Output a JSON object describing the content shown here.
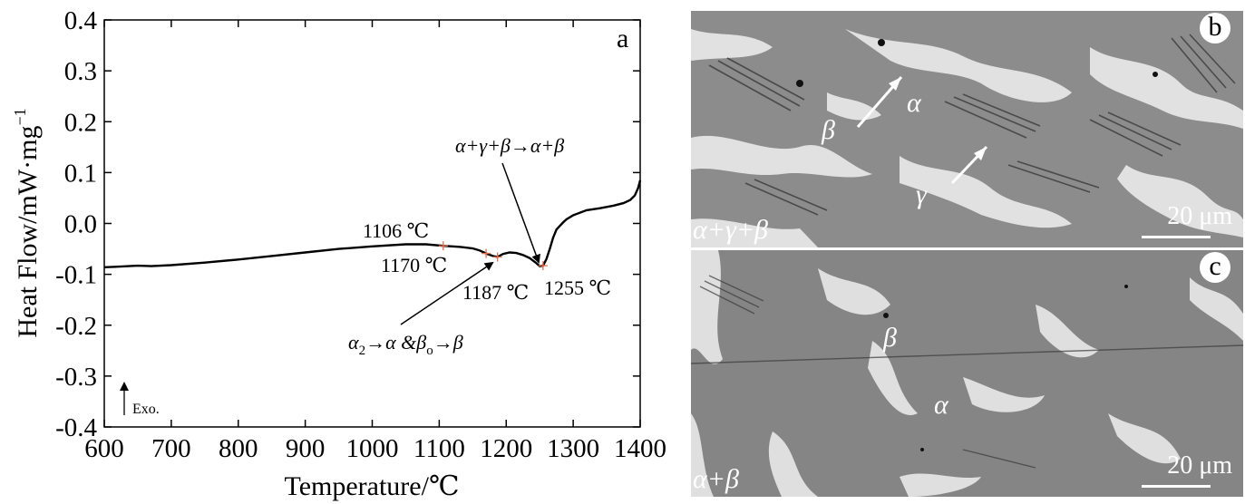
{
  "chart_data": {
    "type": "line",
    "panel_label": "a",
    "xlabel": "Temperature/℃",
    "ylabel_main": "Heat Flow/mW·mg",
    "ylabel_sup": "−1",
    "xlim": [
      600,
      1400
    ],
    "ylim": [
      -0.4,
      0.4
    ],
    "x_ticks": [
      600,
      700,
      800,
      900,
      1000,
      1100,
      1200,
      1300,
      1400
    ],
    "x_tick_labels": [
      "600",
      "700",
      "800",
      "900",
      "1000",
      "1100",
      "1200",
      "1300",
      "1400"
    ],
    "y_ticks": [
      0.4,
      0.3,
      0.2,
      0.1,
      0.0,
      -0.1,
      -0.2,
      -0.3,
      -0.4
    ],
    "y_tick_labels": [
      "0.4",
      "0.3",
      "0.2",
      "0.1",
      "0.0",
      "-0.1",
      "-0.2",
      "-0.3",
      "-0.4"
    ],
    "grid": false,
    "series": [
      {
        "x": [
          600,
          620,
          650,
          670,
          700,
          750,
          800,
          850,
          900,
          950,
          1000,
          1050,
          1080,
          1106,
          1130,
          1150,
          1160,
          1170,
          1180,
          1187,
          1195,
          1205,
          1215,
          1225,
          1235,
          1245,
          1250,
          1255,
          1260,
          1265,
          1270,
          1275,
          1280,
          1285,
          1290,
          1300,
          1320,
          1340,
          1360,
          1375,
          1385,
          1392,
          1397,
          1400
        ],
        "y": [
          -0.086,
          -0.085,
          -0.083,
          -0.084,
          -0.082,
          -0.077,
          -0.071,
          -0.064,
          -0.057,
          -0.05,
          -0.045,
          -0.041,
          -0.041,
          -0.044,
          -0.046,
          -0.049,
          -0.053,
          -0.059,
          -0.064,
          -0.066,
          -0.06,
          -0.057,
          -0.058,
          -0.062,
          -0.068,
          -0.078,
          -0.084,
          -0.083,
          -0.07,
          -0.05,
          -0.028,
          -0.012,
          -0.005,
          0.002,
          0.008,
          0.016,
          0.026,
          0.03,
          0.035,
          0.04,
          0.046,
          0.055,
          0.07,
          0.085
        ]
      }
    ],
    "markers": [
      {
        "x": 1106,
        "y": -0.044
      },
      {
        "x": 1170,
        "y": -0.059
      },
      {
        "x": 1187,
        "y": -0.066
      },
      {
        "x": 1255,
        "y": -0.083
      }
    ],
    "annotations": {
      "t1106": "1106 ℃",
      "t1170": "1170 ℃",
      "t1187": "1187 ℃",
      "t1255": "1255 ℃",
      "reaction_upper": "α+γ+β→α+β",
      "reaction_lower_a": "α",
      "reaction_lower_a_sub": "2",
      "reaction_lower_mid": "→α &β",
      "reaction_lower_o_sub": "o",
      "reaction_lower_end": "→β",
      "exo_label": "Exo."
    },
    "colors": {
      "line": "#000000",
      "marker": "#e07050"
    }
  },
  "panel_b": {
    "letter": "b",
    "phases": {
      "alpha": "α",
      "beta": "β",
      "gamma": "γ"
    },
    "corner_label": "α+γ+β",
    "scale_label": "20 μm"
  },
  "panel_c": {
    "letter": "c",
    "phases": {
      "alpha": "α",
      "beta": "β"
    },
    "corner_label": "α+β",
    "scale_label": "20 μm"
  }
}
